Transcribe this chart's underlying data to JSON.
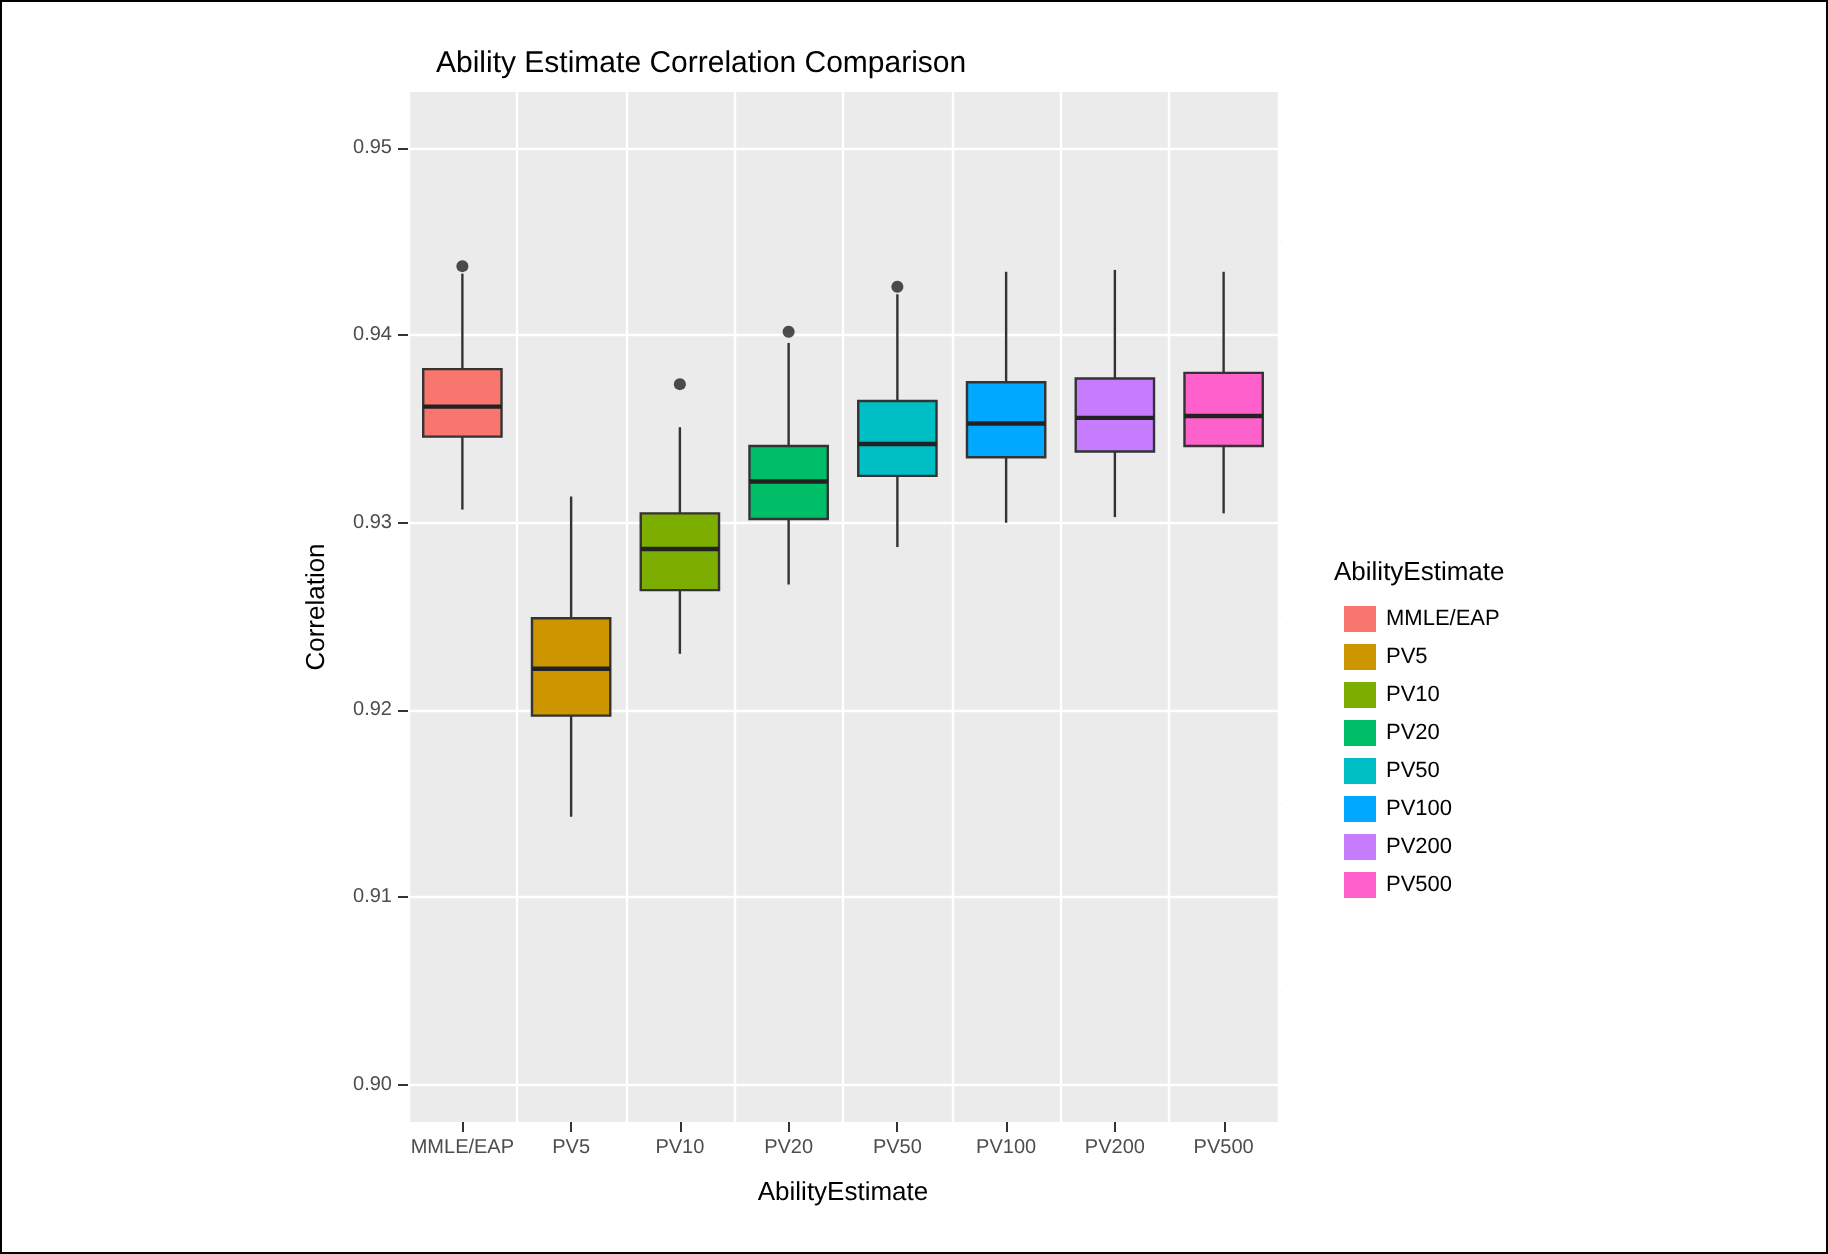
{
  "chart_data": {
    "type": "box",
    "title": "Ability Estimate Correlation Comparison",
    "xlabel": "AbilityEstimate",
    "ylabel": "Correlation",
    "legend_title": "AbilityEstimate",
    "legend": "right",
    "grid": true,
    "categories": [
      "MMLE/EAP",
      "PV5",
      "PV10",
      "PV20",
      "PV50",
      "PV100",
      "PV200",
      "PV500"
    ],
    "series": [
      {
        "name": "MMLE/EAP",
        "color": "#f8766d",
        "boxes": [
          {
            "low": 0.9307,
            "q1": 0.9346,
            "median": 0.9362,
            "q3": 0.9382,
            "high": 0.9433,
            "outliers": [
              0.9437
            ]
          },
          null,
          null,
          null,
          null,
          null,
          null,
          null
        ]
      },
      {
        "name": "PV5",
        "color": "#cd9600",
        "boxes": [
          null,
          {
            "low": 0.9143,
            "q1": 0.9197,
            "median": 0.9222,
            "q3": 0.9249,
            "high": 0.9314
          },
          null,
          null,
          null,
          null,
          null,
          null
        ]
      },
      {
        "name": "PV10",
        "color": "#7cae00",
        "boxes": [
          null,
          null,
          {
            "low": 0.923,
            "q1": 0.9264,
            "median": 0.9286,
            "q3": 0.9305,
            "high": 0.9351,
            "outliers": [
              0.9374
            ]
          },
          null,
          null,
          null,
          null,
          null
        ]
      },
      {
        "name": "PV20",
        "color": "#00be67",
        "boxes": [
          null,
          null,
          null,
          {
            "low": 0.9267,
            "q1": 0.9302,
            "median": 0.9322,
            "q3": 0.9341,
            "high": 0.9396,
            "outliers": [
              0.9402
            ]
          },
          null,
          null,
          null,
          null
        ]
      },
      {
        "name": "PV50",
        "color": "#00bfc4",
        "boxes": [
          null,
          null,
          null,
          null,
          {
            "low": 0.9287,
            "q1": 0.9325,
            "median": 0.9342,
            "q3": 0.9365,
            "high": 0.9422,
            "outliers": [
              0.9426
            ]
          },
          null,
          null,
          null
        ]
      },
      {
        "name": "PV100",
        "color": "#00a9ff",
        "boxes": [
          null,
          null,
          null,
          null,
          null,
          {
            "low": 0.93,
            "q1": 0.9335,
            "median": 0.9353,
            "q3": 0.9375,
            "high": 0.9434
          },
          null,
          null
        ]
      },
      {
        "name": "PV200",
        "color": "#c77cff",
        "boxes": [
          null,
          null,
          null,
          null,
          null,
          null,
          {
            "low": 0.9303,
            "q1": 0.9338,
            "median": 0.9356,
            "q3": 0.9377,
            "high": 0.9435
          },
          null
        ]
      },
      {
        "name": "PV500",
        "color": "#ff61cc",
        "boxes": [
          null,
          null,
          null,
          null,
          null,
          null,
          null,
          {
            "low": 0.9305,
            "q1": 0.9341,
            "median": 0.9357,
            "q3": 0.938,
            "high": 0.9434
          }
        ]
      }
    ],
    "ylim": [
      0.898,
      0.953
    ],
    "yticks": [
      {
        "value": 0.9,
        "label": "0.90"
      },
      0.91,
      0.92,
      0.93,
      0.94,
      0.95
    ]
  }
}
